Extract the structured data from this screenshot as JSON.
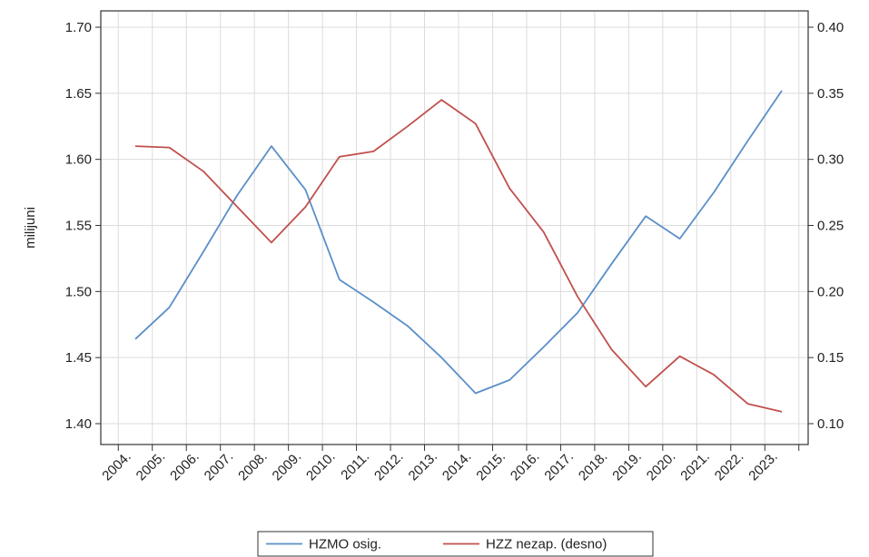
{
  "chart_data": {
    "type": "line",
    "x": [
      "2004.",
      "2005.",
      "2006.",
      "2007.",
      "2008.",
      "2009.",
      "2010.",
      "2011.",
      "2012.",
      "2013.",
      "2014.",
      "2015.",
      "2016.",
      "2017.",
      "2018.",
      "2019.",
      "2020.",
      "2021.",
      "2022.",
      "2023."
    ],
    "ylabel": "milijuni",
    "ylim": [
      1.4,
      1.7
    ],
    "y_ticks": [
      "1.40",
      "1.45",
      "1.50",
      "1.55",
      "1.60",
      "1.65",
      "1.70"
    ],
    "y2lim": [
      0.1,
      0.4
    ],
    "y2_ticks": [
      "0.10",
      "0.15",
      "0.20",
      "0.25",
      "0.30",
      "0.35",
      "0.40"
    ],
    "grid": true,
    "legend_position": "bottom",
    "series": [
      {
        "name": "HZMO osig.",
        "axis": "left",
        "color": "#5b8fc9",
        "values": [
          1.464,
          1.488,
          1.53,
          1.573,
          1.61,
          1.577,
          1.509,
          1.492,
          1.474,
          1.45,
          1.423,
          1.433,
          1.458,
          1.484,
          1.521,
          1.557,
          1.54,
          1.575,
          1.614,
          1.652
        ]
      },
      {
        "name": "HZZ nezap. (desno)",
        "axis": "right",
        "color": "#c0504d",
        "values": [
          0.31,
          0.309,
          0.291,
          0.264,
          0.237,
          0.264,
          0.302,
          0.306,
          0.325,
          0.345,
          0.327,
          0.278,
          0.245,
          0.196,
          0.156,
          0.128,
          0.151,
          0.137,
          0.115,
          0.109
        ]
      }
    ]
  }
}
